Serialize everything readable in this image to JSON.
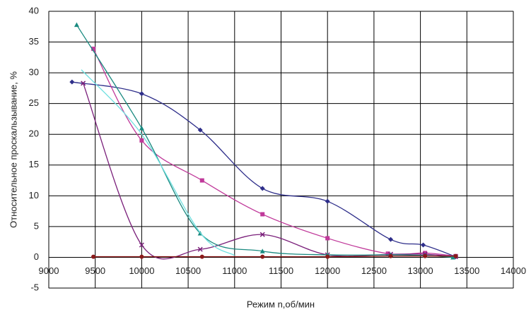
{
  "chart_data": {
    "type": "line",
    "ylabel": "Относительное проскальзывание, %",
    "xlabel": "Режим n,об/мин",
    "xlim": [
      9000,
      14000
    ],
    "xticks": [
      9000,
      9500,
      10000,
      10500,
      11000,
      11500,
      12000,
      12500,
      13000,
      13500,
      14000
    ],
    "ylim": [
      -5,
      40
    ],
    "yticks": [
      -5,
      0,
      5,
      10,
      15,
      20,
      25,
      30,
      35,
      40
    ],
    "grid": true,
    "smooth": true,
    "series": [
      {
        "color": "#2e2e8a",
        "marker": "diamond",
        "x": [
          9250,
          10000,
          10630,
          11300,
          12000,
          12680,
          13030,
          13380
        ],
        "values": [
          28.5,
          26.6,
          20.7,
          11.2,
          9.1,
          2.9,
          2.0,
          0.1
        ]
      },
      {
        "color": "#c0399a",
        "marker": "square",
        "x": [
          9480,
          10000,
          10650,
          11300,
          12000,
          12650,
          13050,
          13380
        ],
        "values": [
          33.9,
          19.0,
          12.5,
          7.0,
          3.1,
          0.6,
          0.7,
          0.2
        ]
      },
      {
        "color": "#7a1f7a",
        "marker": "cross",
        "x": [
          9370,
          10000,
          10630,
          11300,
          12000,
          12680,
          13050,
          13380
        ],
        "values": [
          28.3,
          2.0,
          1.3,
          3.7,
          0.4,
          0.5,
          0.5,
          0.1
        ]
      },
      {
        "color": "#1a8a80",
        "marker": "triangle",
        "x": [
          9300,
          10000,
          10630,
          11300,
          12000,
          12680,
          13050,
          13350
        ],
        "values": [
          37.8,
          21.0,
          3.9,
          1.0,
          0.4,
          0.4,
          0.3,
          0.0
        ]
      },
      {
        "color": "#6fe0e0",
        "marker": "none",
        "x": [
          9350,
          10000,
          10630,
          11000
        ],
        "values": [
          30.5,
          20.0,
          4.0,
          0.3
        ]
      },
      {
        "color": "#8b1a1a",
        "marker": "circle",
        "x": [
          9480,
          10000,
          10650,
          11300,
          12000,
          12680,
          13050,
          13380
        ],
        "values": [
          0.1,
          0.1,
          0.1,
          0.1,
          0.1,
          0.2,
          0.2,
          0.2
        ]
      }
    ]
  }
}
